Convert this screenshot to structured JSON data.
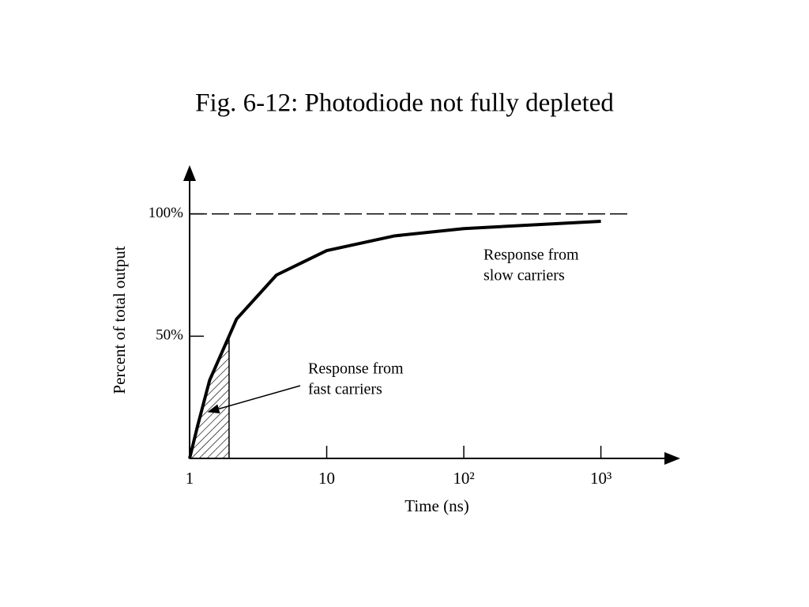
{
  "chart_data": {
    "type": "line",
    "title": "Fig. 6-12: Photodiode not fully depleted",
    "x_label": "Time (ns)",
    "y_label": "Percent of total output",
    "x_scale": "log",
    "x": [
      1,
      1.14,
      1.4,
      1.94,
      2.2,
      4.3,
      10,
      31,
      100,
      1000
    ],
    "series": [
      {
        "color": "#000000",
        "values": [
          0,
          13,
          32,
          50,
          57,
          75,
          85,
          91,
          94,
          97
        ]
      }
    ],
    "xlim": [
      1,
      3500
    ],
    "ylim": [
      0,
      118
    ],
    "xticks": [
      1,
      10,
      {
        "value": 100,
        "label": "10²"
      },
      {
        "value": 1000,
        "label": "10³"
      }
    ],
    "yticks": [
      {
        "value": 50,
        "label": "50%"
      },
      {
        "value": 100,
        "label": "100%"
      }
    ],
    "reference_line": 100,
    "shaded_xrange": [
      1,
      1.94
    ],
    "annotations": [
      {
        "lines": [
          "Response from",
          "slow carriers"
        ]
      },
      {
        "lines": [
          "Response from",
          "fast carriers"
        ]
      }
    ]
  }
}
